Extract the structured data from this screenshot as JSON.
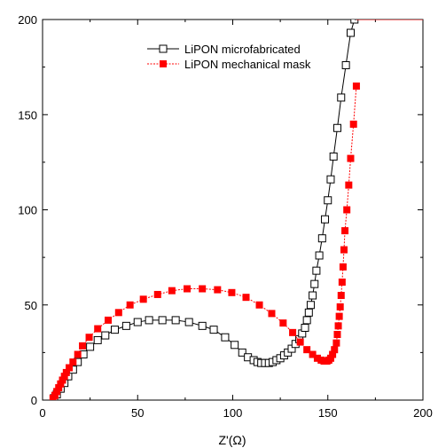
{
  "chart_data": {
    "type": "scatter",
    "title": "",
    "xlabel": "Z'(Ω)",
    "ylabel": "",
    "xlim": [
      0,
      200
    ],
    "ylim": [
      0,
      200
    ],
    "xticks": [
      0,
      50,
      100,
      150,
      200
    ],
    "yticks": [
      0,
      50,
      100,
      150,
      200
    ],
    "grid": false,
    "legend_position": "top-right",
    "series": [
      {
        "name": "LiPON microfabricated",
        "marker": "open-square",
        "color": "#000000",
        "x": [
          6.0,
          7.5,
          9.5,
          11.5,
          13.5,
          16.0,
          18.5,
          21.5,
          25.0,
          29.0,
          33.0,
          38.0,
          44.0,
          50.0,
          56.0,
          63.0,
          70.0,
          77.0,
          84.0,
          90.0,
          96.0,
          101.0,
          105.0,
          108.0,
          111.0,
          113.0,
          115.0,
          117.0,
          119.0,
          121.0,
          123.0,
          125.0,
          127.0,
          129.0,
          131.0,
          133.0,
          135.0,
          136.5,
          138.0,
          139.0,
          140.0,
          141.0,
          142.0,
          143.0,
          144.0,
          145.5,
          147.0,
          148.5,
          150.0,
          151.5,
          153.0,
          155.0,
          157.0,
          159.5,
          162.0,
          164.0
        ],
        "y": [
          1.0,
          3.0,
          6.0,
          9.0,
          12.5,
          16.0,
          20.0,
          24.0,
          28.0,
          31.5,
          34.0,
          37.0,
          39.0,
          41.0,
          42.0,
          42.0,
          42.0,
          41.0,
          39.0,
          37.0,
          33.0,
          29.0,
          25.0,
          22.5,
          21.0,
          20.0,
          19.5,
          19.5,
          19.5,
          20.0,
          21.0,
          22.0,
          23.5,
          25.0,
          27.0,
          29.5,
          32.0,
          35.0,
          38.0,
          42.0,
          46.0,
          50.0,
          55.0,
          61.0,
          68.0,
          76.0,
          85.0,
          95.0,
          105.0,
          116.0,
          128.0,
          143.0,
          159.0,
          176.0,
          193.0,
          200.0
        ]
      },
      {
        "name": "LiPON mechanical mask",
        "marker": "filled-square",
        "color": "#ff0000",
        "x": [
          5.5,
          6.5,
          7.5,
          8.5,
          9.5,
          10.5,
          11.5,
          12.5,
          14.0,
          16.0,
          18.5,
          21.0,
          24.5,
          29.0,
          34.5,
          40.0,
          46.0,
          53.0,
          60.5,
          68.0,
          76.0,
          84.0,
          92.0,
          99.5,
          107.0,
          114.0,
          120.5,
          126.5,
          131.5,
          135.5,
          139.0,
          142.0,
          144.5,
          146.5,
          148.0,
          149.5,
          150.5,
          151.5,
          152.5,
          153.5,
          154.5,
          155.0,
          155.5,
          156.0,
          156.5,
          157.0,
          157.5,
          158.0,
          158.5,
          159.0,
          160.0,
          161.0,
          162.0,
          163.5,
          165.0
        ],
        "y": [
          1.0,
          2.5,
          4.5,
          6.5,
          8.5,
          10.5,
          12.5,
          14.5,
          17.0,
          20.0,
          24.0,
          28.5,
          33.0,
          37.5,
          42.0,
          46.0,
          50.0,
          53.0,
          55.5,
          57.5,
          58.5,
          58.5,
          58.0,
          56.5,
          54.0,
          50.0,
          45.5,
          40.5,
          35.5,
          30.5,
          26.5,
          24.0,
          22.0,
          21.0,
          20.5,
          20.5,
          21.0,
          22.0,
          24.0,
          26.5,
          30.0,
          34.5,
          39.0,
          44.0,
          49.0,
          55.0,
          62.0,
          70.0,
          79.0,
          89.0,
          100.0,
          113.0,
          127.0,
          145.0,
          165.0
        ]
      }
    ]
  }
}
